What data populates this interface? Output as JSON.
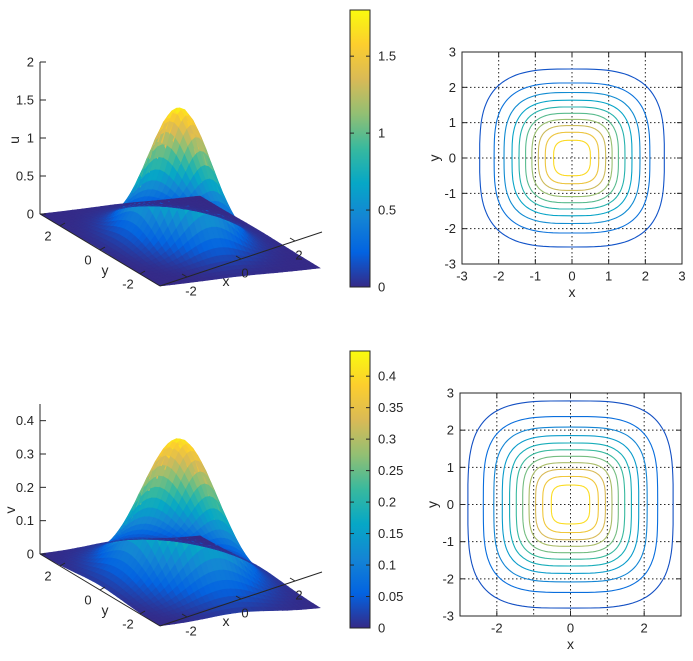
{
  "colors": {
    "colormap": "parula",
    "axis": "#262626",
    "background": "#ffffff",
    "grid": "#262626"
  },
  "chart_data": [
    {
      "id": "u-surface",
      "type": "surface3d",
      "zlabel": "u",
      "xlabel": "x",
      "ylabel": "y",
      "function": "gaussian-like peak centered at origin",
      "peak_value": 1.75,
      "xlim": [
        -3,
        3
      ],
      "ylim": [
        -3,
        3
      ],
      "zlim": [
        0,
        2
      ],
      "ticks": {
        "x": [
          "-2",
          "0",
          "2"
        ],
        "y": [
          "-2",
          "0",
          "2"
        ],
        "z": [
          "0",
          "0.5",
          "1",
          "1.5",
          "2"
        ]
      },
      "colorbar": {
        "range": [
          0,
          1.8
        ],
        "tick_values": [
          0,
          0.5,
          1,
          1.5
        ],
        "tick_labels": [
          "0",
          "0.5",
          "1",
          "1.5"
        ]
      }
    },
    {
      "id": "u-contour",
      "type": "contour",
      "xlabel": "x",
      "ylabel": "y",
      "xlim": [
        -3,
        3
      ],
      "ylim": [
        -3,
        3
      ],
      "grid": true,
      "ticks": {
        "x": [
          "-3",
          "-2",
          "-1",
          "0",
          "1",
          "2",
          "3"
        ],
        "y": [
          "-3",
          "-2",
          "-1",
          "0",
          "1",
          "2",
          "3"
        ]
      },
      "levels": 10,
      "max": 1.8
    },
    {
      "id": "v-surface",
      "type": "surface3d",
      "zlabel": "v",
      "xlabel": "x",
      "ylabel": "y",
      "function": "gaussian-like peak centered at origin",
      "peak_value": 0.42,
      "xlim": [
        -3,
        3
      ],
      "ylim": [
        -3,
        3
      ],
      "zlim": [
        0,
        0.45
      ],
      "ticks": {
        "x": [
          "-2",
          "0",
          "2"
        ],
        "y": [
          "-2",
          "0",
          "2"
        ],
        "z": [
          "0",
          "0.1",
          "0.2",
          "0.3",
          "0.4"
        ]
      },
      "colorbar": {
        "range": [
          0,
          0.44
        ],
        "tick_values": [
          0,
          0.05,
          0.1,
          0.15,
          0.2,
          0.25,
          0.3,
          0.35,
          0.4
        ],
        "tick_labels": [
          "0",
          "0.05",
          "0.1",
          "0.15",
          "0.2",
          "0.25",
          "0.3",
          "0.35",
          "0.4"
        ]
      }
    },
    {
      "id": "v-contour",
      "type": "contour",
      "xlabel": "x",
      "ylabel": "y",
      "xlim": [
        -3,
        3
      ],
      "ylim": [
        -3,
        3
      ],
      "grid": true,
      "ticks": {
        "x": [
          "-2",
          "0",
          "2"
        ],
        "y": [
          "-3",
          "-2",
          "-1",
          "0",
          "1",
          "2",
          "3"
        ]
      },
      "levels": 11,
      "max": 0.44
    }
  ]
}
